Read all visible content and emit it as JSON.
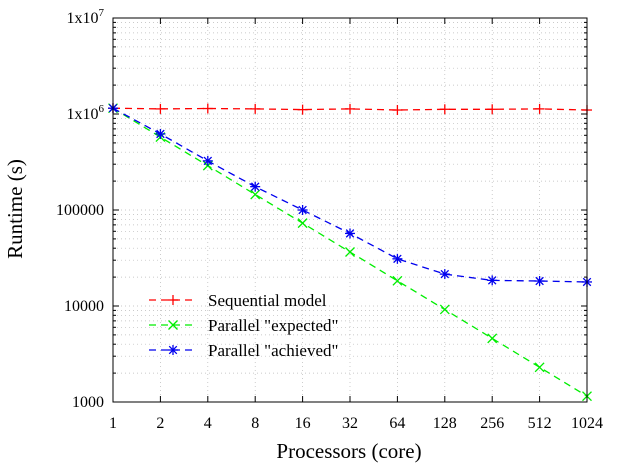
{
  "chart_data": {
    "type": "line",
    "xlabel": "Processors (core)",
    "ylabel": "Runtime (s)",
    "x_scale": "log2",
    "y_scale": "log10",
    "x": [
      1,
      2,
      4,
      8,
      16,
      32,
      64,
      128,
      256,
      512,
      1024
    ],
    "x_tick_labels": [
      "1",
      "2",
      "4",
      "8",
      "16",
      "32",
      "64",
      "128",
      "256",
      "512",
      "1024"
    ],
    "xlim": [
      1,
      1024
    ],
    "ylim": [
      1000,
      10000000
    ],
    "y_ticks": [
      {
        "value": 1000,
        "base": "1000",
        "exp": ""
      },
      {
        "value": 10000,
        "base": "10000",
        "exp": ""
      },
      {
        "value": 100000,
        "base": "100000",
        "exp": ""
      },
      {
        "value": 1000000,
        "base": "1x10",
        "exp": "6"
      },
      {
        "value": 10000000,
        "base": "1x10",
        "exp": "7"
      }
    ],
    "grid": true,
    "legend_position": "bottom-left",
    "series": [
      {
        "name": "Sequential model",
        "color": "#ff0000",
        "marker": "plus",
        "values": [
          1150000,
          1130000,
          1140000,
          1130000,
          1110000,
          1130000,
          1100000,
          1120000,
          1120000,
          1130000,
          1100000
        ]
      },
      {
        "name": "Parallel \"expected\"",
        "color": "#00ee00",
        "marker": "cross",
        "values": [
          1150000,
          575000,
          290000,
          145000,
          73000,
          36500,
          18300,
          9200,
          4600,
          2300,
          1150
        ]
      },
      {
        "name": "Parallel \"achieved\"",
        "color": "#0000ee",
        "marker": "star",
        "values": [
          1150000,
          620000,
          325000,
          175000,
          100000,
          57000,
          31000,
          21500,
          18500,
          18200,
          17800
        ]
      }
    ]
  }
}
